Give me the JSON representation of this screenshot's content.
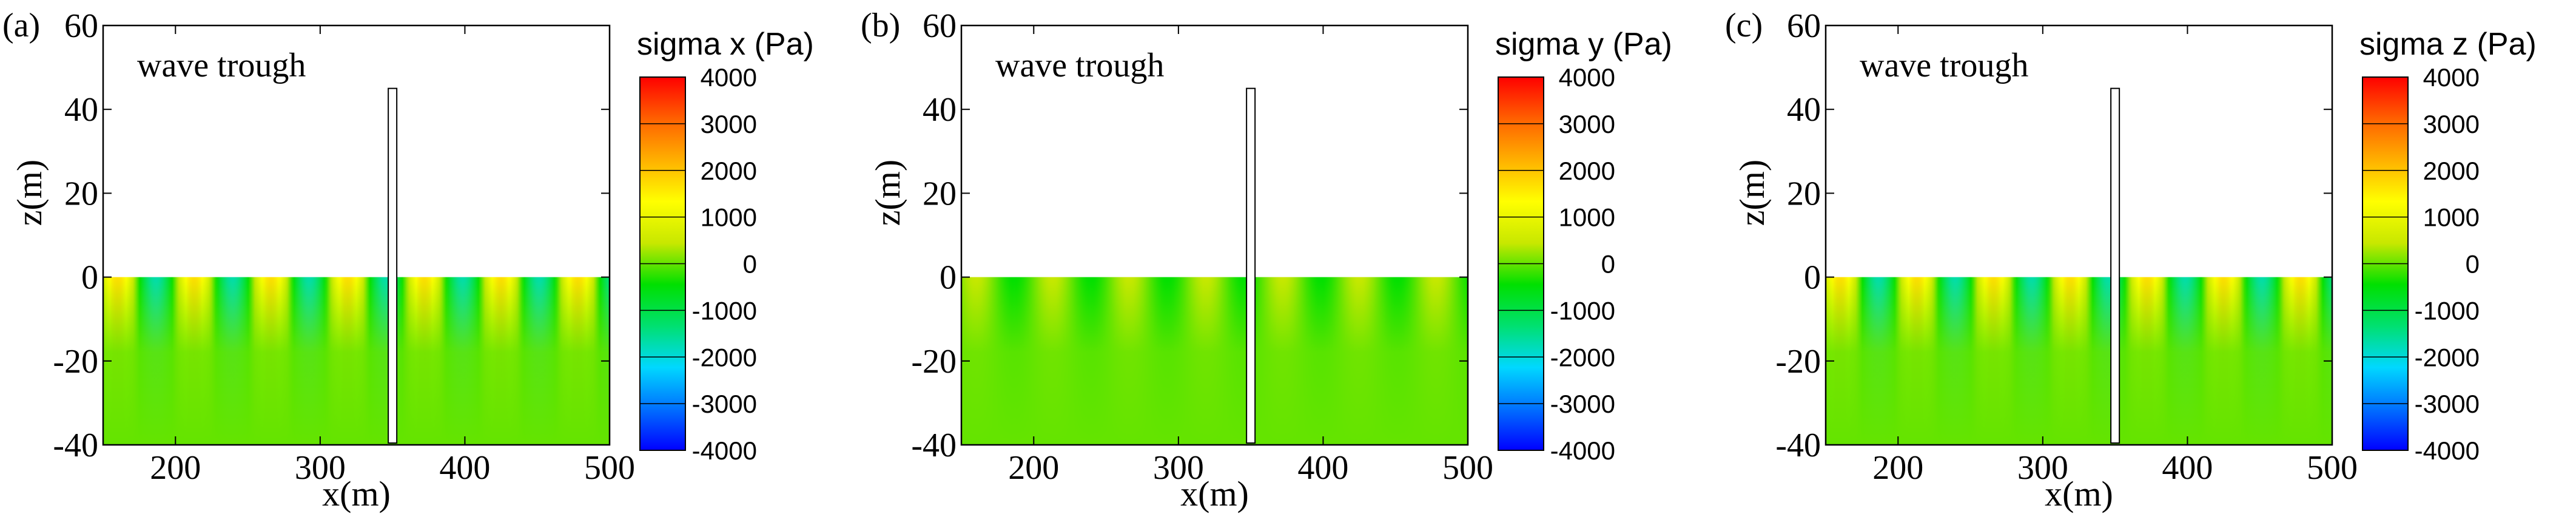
{
  "colorbar_stops": [
    "#0000ff",
    "#0070ff",
    "#00d8ff",
    "#00e070",
    "#00e000",
    "#c8e800",
    "#ffff00",
    "#ffb000",
    "#ff6000",
    "#ff0000"
  ],
  "chart_data": [
    {
      "type": "heatmap",
      "panel_label": "(a)",
      "annotation": "wave trough",
      "xlabel": "x(m)",
      "ylabel": "z(m)",
      "xlim": [
        150,
        500
      ],
      "ylim": [
        -40,
        60
      ],
      "x_ticks": [
        200,
        300,
        400,
        500
      ],
      "y_ticks": [
        -40,
        -20,
        0,
        20,
        40,
        60
      ],
      "colorbar": {
        "title": "sigma x (Pa)",
        "min": -4000,
        "max": 4000,
        "ticks": [
          4000,
          3000,
          2000,
          1000,
          0,
          -1000,
          -2000,
          -3000,
          -4000
        ]
      },
      "field": {
        "region_x": [
          150,
          500
        ],
        "region_z": [
          -40,
          0
        ],
        "wavelength": 53,
        "max_amplitude": 1700,
        "peak_x": 213
      },
      "pile": {
        "x": 350,
        "z": [
          -40,
          45
        ]
      }
    },
    {
      "type": "heatmap",
      "panel_label": "(b)",
      "annotation": "wave trough",
      "xlabel": "x(m)",
      "ylabel": "z(m)",
      "xlim": [
        150,
        500
      ],
      "ylim": [
        -40,
        60
      ],
      "x_ticks": [
        200,
        300,
        400,
        500
      ],
      "y_ticks": [
        -40,
        -20,
        0,
        20,
        40,
        60
      ],
      "colorbar": {
        "title": "sigma y (Pa)",
        "min": -4000,
        "max": 4000,
        "ticks": [
          4000,
          3000,
          2000,
          1000,
          0,
          -1000,
          -2000,
          -3000,
          -4000
        ]
      },
      "field": {
        "region_x": [
          150,
          500
        ],
        "region_z": [
          -40,
          0
        ],
        "wavelength": 53,
        "max_amplitude": 450,
        "peak_x": 213
      },
      "pile": {
        "x": 350,
        "z": [
          -40,
          45
        ]
      }
    },
    {
      "type": "heatmap",
      "panel_label": "(c)",
      "annotation": "wave trough",
      "xlabel": "x(m)",
      "ylabel": "z(m)",
      "xlim": [
        150,
        500
      ],
      "ylim": [
        -40,
        60
      ],
      "x_ticks": [
        200,
        300,
        400,
        500
      ],
      "y_ticks": [
        -40,
        -20,
        0,
        20,
        40,
        60
      ],
      "colorbar": {
        "title": "sigma z (Pa)",
        "min": -4000,
        "max": 4000,
        "ticks": [
          4000,
          3000,
          2000,
          1000,
          0,
          -1000,
          -2000,
          -3000,
          -4000
        ]
      },
      "field": {
        "region_x": [
          150,
          500
        ],
        "region_z": [
          -40,
          0
        ],
        "wavelength": 53,
        "max_amplitude": 1700,
        "peak_x": 213
      },
      "pile": {
        "x": 350,
        "z": [
          -40,
          45
        ]
      }
    }
  ]
}
